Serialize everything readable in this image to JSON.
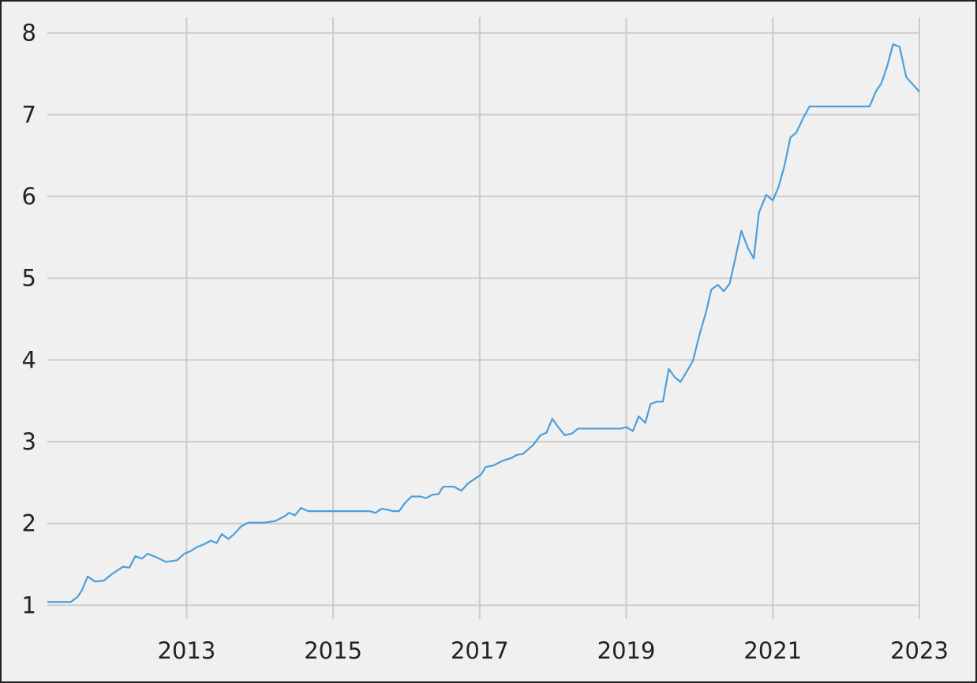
{
  "chart_data": {
    "type": "line",
    "x": [
      2011.1,
      2011.42,
      2011.51,
      2011.57,
      2011.65,
      2011.75,
      2011.87,
      2011.98,
      2012.13,
      2012.22,
      2012.3,
      2012.39,
      2012.47,
      2012.58,
      2012.72,
      2012.87,
      2012.97,
      2013.05,
      2013.14,
      2013.25,
      2013.33,
      2013.41,
      2013.48,
      2013.57,
      2013.65,
      2013.74,
      2013.84,
      2014.06,
      2014.21,
      2014.34,
      2014.4,
      2014.48,
      2014.56,
      2014.66,
      2015.5,
      2015.58,
      2015.66,
      2015.73,
      2015.82,
      2015.9,
      2015.98,
      2016.07,
      2016.19,
      2016.27,
      2016.35,
      2016.44,
      2016.5,
      2016.65,
      2016.75,
      2016.84,
      2016.94,
      2017.02,
      2017.08,
      2017.19,
      2017.32,
      2017.43,
      2017.51,
      2017.59,
      2017.73,
      2017.83,
      2017.91,
      2017.99,
      2018.07,
      2018.16,
      2018.26,
      2018.34,
      2018.93,
      2019.0,
      2019.09,
      2019.17,
      2019.26,
      2019.33,
      2019.42,
      2019.5,
      2019.58,
      2019.66,
      2019.74,
      2019.82,
      2019.91,
      2020.0,
      2020.09,
      2020.16,
      2020.25,
      2020.33,
      2020.41,
      2020.49,
      2020.57,
      2020.66,
      2020.74,
      2020.81,
      2020.91,
      2021.0,
      2021.08,
      2021.16,
      2021.24,
      2021.32,
      2021.41,
      2021.5,
      2022.32,
      2022.41,
      2022.48,
      2022.56,
      2022.64,
      2022.73,
      2022.82,
      2023.0
    ],
    "series": [
      {
        "color": "#4a9fdb",
        "values": [
          1.04,
          1.04,
          1.1,
          1.18,
          1.35,
          1.29,
          1.3,
          1.38,
          1.47,
          1.46,
          1.6,
          1.57,
          1.63,
          1.59,
          1.53,
          1.55,
          1.63,
          1.66,
          1.71,
          1.75,
          1.79,
          1.76,
          1.87,
          1.81,
          1.87,
          1.96,
          2.01,
          2.01,
          2.03,
          2.09,
          2.13,
          2.1,
          2.19,
          2.15,
          2.15,
          2.13,
          2.18,
          2.17,
          2.15,
          2.15,
          2.25,
          2.33,
          2.33,
          2.31,
          2.35,
          2.36,
          2.45,
          2.45,
          2.4,
          2.49,
          2.55,
          2.6,
          2.69,
          2.71,
          2.77,
          2.8,
          2.84,
          2.85,
          2.96,
          3.08,
          3.11,
          3.28,
          3.18,
          3.08,
          3.1,
          3.16,
          3.16,
          3.18,
          3.13,
          3.31,
          3.23,
          3.46,
          3.49,
          3.49,
          3.89,
          3.79,
          3.73,
          3.85,
          3.99,
          4.31,
          4.59,
          4.86,
          4.92,
          4.84,
          4.93,
          5.25,
          5.58,
          5.37,
          5.24,
          5.8,
          6.02,
          5.95,
          6.12,
          6.38,
          6.72,
          6.78,
          6.95,
          7.1,
          7.1,
          7.29,
          7.38,
          7.59,
          7.86,
          7.83,
          7.46,
          7.28
        ]
      }
    ],
    "xlim": [
      2011.1,
      2023
    ],
    "xticks": [
      2013,
      2015,
      2017,
      2019,
      2021,
      2023
    ],
    "ylim": [
      0.83,
      8.19
    ],
    "yticks": [
      1,
      2,
      3,
      4,
      5,
      6,
      7,
      8
    ],
    "grid": true
  }
}
